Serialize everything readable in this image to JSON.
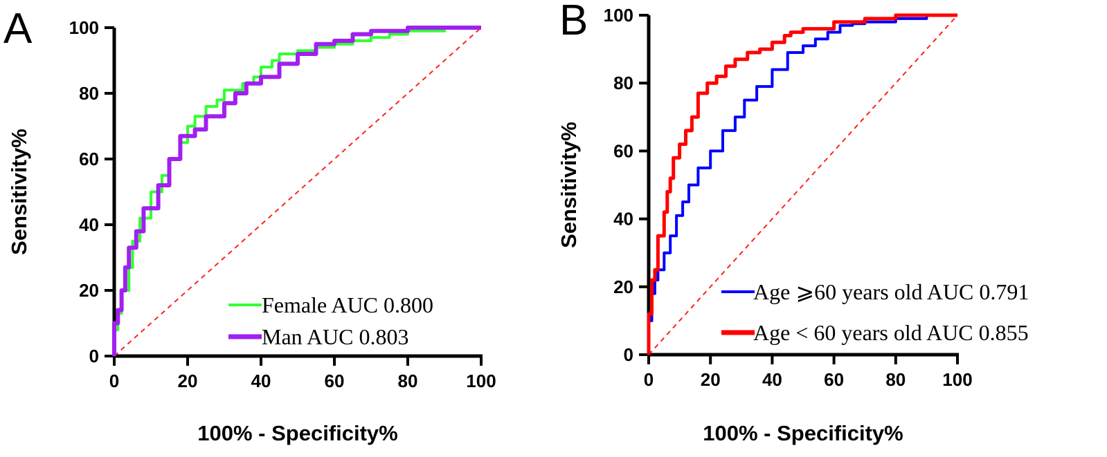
{
  "chart_data": [
    {
      "type": "line",
      "panel_label": "A",
      "xlabel": "100% - Specificity%",
      "ylabel": "Sensitivity%",
      "xlim": [
        0,
        100
      ],
      "ylim": [
        0,
        100
      ],
      "xticks": [
        "0",
        "20",
        "40",
        "60",
        "80",
        "100"
      ],
      "yticks": [
        "0",
        "20",
        "40",
        "60",
        "80",
        "100"
      ],
      "grid": false,
      "legend_position": "bottom-right",
      "reference_line": {
        "color": "#ff2020",
        "style": "dashed"
      },
      "series": [
        {
          "name": "Female AUC 0.800",
          "color": "#33ff33",
          "points": [
            [
              0,
              0
            ],
            [
              1,
              8
            ],
            [
              2,
              13
            ],
            [
              4,
              20
            ],
            [
              5,
              27
            ],
            [
              7,
              35
            ],
            [
              10,
              42
            ],
            [
              13,
              50
            ],
            [
              15,
              55
            ],
            [
              18,
              60
            ],
            [
              20,
              65
            ],
            [
              22,
              70
            ],
            [
              25,
              73
            ],
            [
              28,
              76
            ],
            [
              30,
              78
            ],
            [
              35,
              81
            ],
            [
              38,
              83
            ],
            [
              40,
              85
            ],
            [
              43,
              88
            ],
            [
              45,
              90
            ],
            [
              50,
              92
            ],
            [
              55,
              93
            ],
            [
              60,
              94
            ],
            [
              65,
              95
            ],
            [
              70,
              96
            ],
            [
              75,
              97
            ],
            [
              80,
              98
            ],
            [
              85,
              99
            ],
            [
              90,
              99
            ],
            [
              100,
              100
            ]
          ]
        },
        {
          "name": "Man AUC 0.803",
          "color": "#a020f0",
          "points": [
            [
              0,
              0
            ],
            [
              1,
              10
            ],
            [
              2,
              14
            ],
            [
              3,
              20
            ],
            [
              4,
              27
            ],
            [
              6,
              33
            ],
            [
              8,
              38
            ],
            [
              12,
              45
            ],
            [
              15,
              52
            ],
            [
              18,
              60
            ],
            [
              22,
              67
            ],
            [
              25,
              69
            ],
            [
              30,
              73
            ],
            [
              33,
              77
            ],
            [
              36,
              80
            ],
            [
              40,
              83
            ],
            [
              45,
              85
            ],
            [
              50,
              89
            ],
            [
              55,
              92
            ],
            [
              60,
              95
            ],
            [
              65,
              96
            ],
            [
              70,
              98
            ],
            [
              75,
              99
            ],
            [
              80,
              99
            ],
            [
              90,
              100
            ],
            [
              100,
              100
            ]
          ]
        }
      ]
    },
    {
      "type": "line",
      "panel_label": "B",
      "xlabel": "100% - Specificity%",
      "ylabel": "Sensitivity%",
      "xlim": [
        0,
        100
      ],
      "ylim": [
        0,
        100
      ],
      "xticks": [
        "0",
        "20",
        "40",
        "60",
        "80",
        "100"
      ],
      "yticks": [
        "0",
        "20",
        "40",
        "60",
        "80",
        "100"
      ],
      "grid": false,
      "legend_position": "bottom-right",
      "reference_line": {
        "color": "#ff2020",
        "style": "dashed"
      },
      "series": [
        {
          "name": "Age ⩾60 years old AUC 0.791",
          "color": "#0000ff",
          "points": [
            [
              0,
              0
            ],
            [
              1,
              10
            ],
            [
              2,
              18
            ],
            [
              3,
              22
            ],
            [
              5,
              25
            ],
            [
              7,
              30
            ],
            [
              9,
              35
            ],
            [
              11,
              41
            ],
            [
              13,
              45
            ],
            [
              16,
              50
            ],
            [
              20,
              55
            ],
            [
              24,
              60
            ],
            [
              28,
              66
            ],
            [
              31,
              70
            ],
            [
              35,
              75
            ],
            [
              40,
              79
            ],
            [
              45,
              84
            ],
            [
              50,
              89
            ],
            [
              54,
              91
            ],
            [
              58,
              93
            ],
            [
              62,
              95
            ],
            [
              66,
              97
            ],
            [
              70,
              97.5
            ],
            [
              80,
              98
            ],
            [
              90,
              99
            ],
            [
              100,
              100
            ]
          ]
        },
        {
          "name": "Age < 60 years old AUC 0.855",
          "color": "#ff0000",
          "points": [
            [
              0,
              0
            ],
            [
              1,
              12
            ],
            [
              2,
              22
            ],
            [
              3,
              25
            ],
            [
              5,
              35
            ],
            [
              6,
              42
            ],
            [
              7,
              48
            ],
            [
              8,
              52
            ],
            [
              10,
              58
            ],
            [
              12,
              62
            ],
            [
              14,
              66
            ],
            [
              16,
              70
            ],
            [
              19,
              77
            ],
            [
              22,
              80
            ],
            [
              25,
              82
            ],
            [
              28,
              85
            ],
            [
              32,
              87
            ],
            [
              36,
              89
            ],
            [
              40,
              90
            ],
            [
              44,
              92
            ],
            [
              46,
              94
            ],
            [
              50,
              95
            ],
            [
              60,
              96
            ],
            [
              70,
              98
            ],
            [
              80,
              99
            ],
            [
              100,
              100
            ]
          ]
        }
      ]
    }
  ]
}
